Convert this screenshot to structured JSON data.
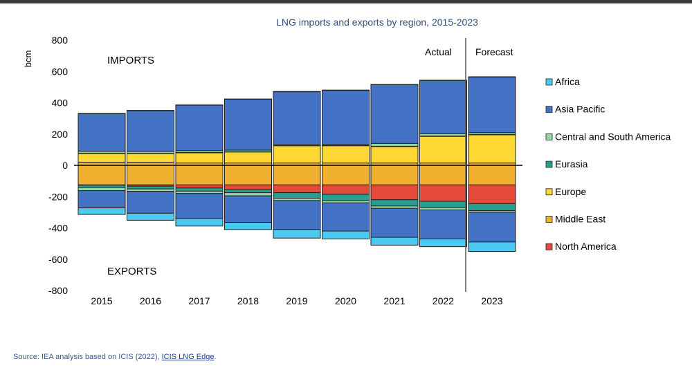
{
  "chart_data": {
    "type": "bar",
    "stacked": true,
    "title": "LNG imports and exports by region, 2015-2023",
    "ylabel": "bcm",
    "xlabel": "",
    "ylim": [
      -800,
      800
    ],
    "yticks": [
      "800",
      "600",
      "400",
      "200",
      "0",
      "-200",
      "-400",
      "-600",
      "-800"
    ],
    "categories": [
      "2015",
      "2016",
      "2017",
      "2018",
      "2019",
      "2020",
      "2021",
      "2022",
      "2023"
    ],
    "section_labels": {
      "imports": "IMPORTS",
      "exports": "EXPORTS",
      "actual": "Actual",
      "forecast": "Forecast"
    },
    "grid": false,
    "legend_position": "right",
    "series": [
      {
        "name": "Africa",
        "color": "#4cc9f0",
        "imports": [
          2,
          2,
          2,
          2,
          2,
          2,
          2,
          2,
          2
        ],
        "exports": [
          -42,
          -45,
          -48,
          -45,
          -55,
          -50,
          -50,
          -50,
          -60
        ]
      },
      {
        "name": "Asia Pacific",
        "color": "#4472c4",
        "imports": [
          240,
          260,
          290,
          325,
          335,
          345,
          375,
          340,
          355
        ],
        "exports": [
          -110,
          -140,
          -160,
          -170,
          -185,
          -180,
          -185,
          -185,
          -190
        ]
      },
      {
        "name": "Central and South America",
        "color": "#8fd9a8",
        "imports": [
          13,
          12,
          12,
          10,
          8,
          7,
          18,
          15,
          12
        ],
        "exports": [
          -20,
          -15,
          -15,
          -20,
          -15,
          -15,
          -15,
          -15,
          -10
        ]
      },
      {
        "name": "Eurasia",
        "color": "#27a08f",
        "imports": [
          2,
          2,
          2,
          2,
          2,
          2,
          2,
          2,
          2
        ],
        "exports": [
          -15,
          -18,
          -20,
          -20,
          -35,
          -40,
          -40,
          -40,
          -45
        ]
      },
      {
        "name": "Europe",
        "color": "#fdd835",
        "imports": [
          55,
          55,
          65,
          70,
          110,
          110,
          105,
          170,
          180
        ],
        "exports": [
          0,
          0,
          0,
          0,
          0,
          0,
          0,
          0,
          0
        ]
      },
      {
        "name": "Middle East",
        "color": "#f0b030",
        "imports": [
          20,
          20,
          15,
          15,
          15,
          15,
          15,
          15,
          15
        ],
        "exports": [
          -125,
          -125,
          -125,
          -125,
          -125,
          -125,
          -125,
          -125,
          -125
        ]
      },
      {
        "name": "North America",
        "color": "#e34a3a",
        "imports": [
          0,
          0,
          0,
          0,
          0,
          0,
          0,
          0,
          0
        ],
        "exports": [
          -2,
          -8,
          -20,
          -30,
          -50,
          -60,
          -95,
          -105,
          -120
        ]
      }
    ]
  },
  "source": {
    "prefix": "Source: IEA analysis based on ICIS (2022), ",
    "link": "ICIS LNG Edge",
    "suffix": "."
  }
}
